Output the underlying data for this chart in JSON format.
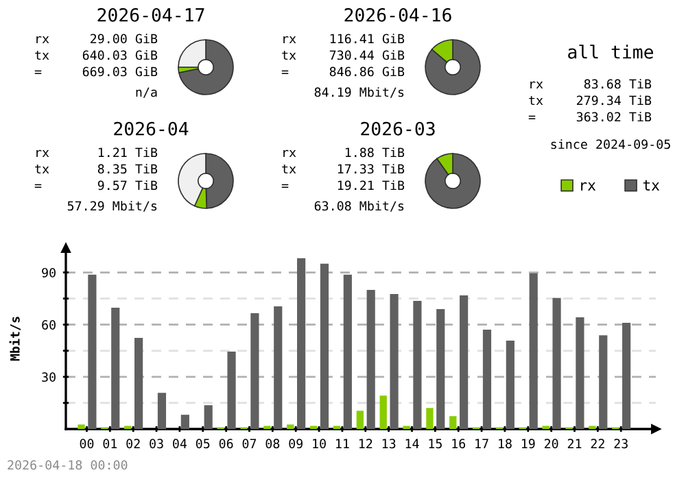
{
  "chart_data": [
    {
      "type": "donut",
      "title": "2026-04-17",
      "categories": [
        null,
        null,
        null
      ],
      "values": [
        71.75,
        3.25,
        25
      ],
      "colors": [
        "#606060",
        "#88cc00",
        "#f0f0f0"
      ],
      "annotations": [
        "rx",
        "29.00 GiB",
        "tx",
        "640.03 GiB",
        "=",
        "669.03 GiB",
        "n/a"
      ]
    },
    {
      "type": "donut",
      "title": "2026-04-16",
      "categories": [
        null,
        null
      ],
      "values": [
        86.25,
        13.75
      ],
      "colors": [
        "#606060",
        "#88cc00"
      ],
      "annotations": [
        "rx",
        "116.41 GiB",
        "tx",
        "730.44 GiB",
        "=",
        "846.86 GiB",
        "84.19 Mbit/s"
      ]
    },
    {
      "type": "other",
      "title": "all time",
      "annotations": [
        "rx",
        "83.68 TiB",
        "tx",
        "279.34 TiB",
        "=",
        "363.02 TiB",
        "since 2024-09-05"
      ]
    },
    {
      "type": "donut",
      "title": "2026-04",
      "categories": [
        null,
        null,
        null
      ],
      "values": [
        49.5,
        7.2,
        43.3
      ],
      "colors": [
        "#606060",
        "#88cc00",
        "#f0f0f0"
      ],
      "annotations": [
        "rx",
        "1.21 TiB",
        "tx",
        "8.35 TiB",
        "=",
        "9.57 TiB",
        "57.29 Mbit/s"
      ]
    },
    {
      "type": "donut",
      "title": "2026-03",
      "categories": [
        null,
        null
      ],
      "values": [
        90.21,
        9.79
      ],
      "colors": [
        "#606060",
        "#88cc00"
      ],
      "annotations": [
        "rx",
        "1.88 TiB",
        "tx",
        "17.33 TiB",
        "=",
        "19.21 TiB",
        "63.08 Mbit/s"
      ]
    },
    {
      "type": "bar",
      "ylabel": "Mbit/s",
      "legend": "top right",
      "grid": "y",
      "categories": [
        "00",
        "01",
        "02",
        "03",
        "04",
        "05",
        "06",
        "07",
        "08",
        "09",
        "10",
        "11",
        "12",
        "13",
        "14",
        "15",
        "16",
        "17",
        "18",
        "19",
        "20",
        "21",
        "22",
        "23"
      ],
      "ylim": [
        0,
        104
      ],
      "yticks": [
        {
          "value": 15,
          "label": null
        },
        30,
        {
          "value": 45,
          "label": null
        },
        60,
        {
          "value": 75,
          "label": null
        },
        90
      ],
      "series": [
        {
          "name": "rx",
          "color": "#88cc00",
          "values": [
            2.6,
            1,
            1.8,
            0,
            0,
            0,
            1,
            1,
            1.8,
            2.6,
            1.8,
            1.8,
            10.5,
            19.2,
            1.8,
            12.1,
            7.4,
            1,
            1,
            1,
            1.8,
            1,
            1.8,
            1
          ]
        },
        {
          "name": "tx",
          "color": "#606060",
          "values": [
            88.7,
            69.7,
            52.4,
            20.8,
            8.2,
            13.7,
            44.5,
            66.6,
            70.5,
            98.2,
            95,
            88.7,
            80,
            77.6,
            73.7,
            68.9,
            76.8,
            57.1,
            50.8,
            89.5,
            75.3,
            64.2,
            53.9,
            61.1
          ]
        }
      ],
      "annotations": [
        "2026-04-18 00:00"
      ]
    }
  ]
}
